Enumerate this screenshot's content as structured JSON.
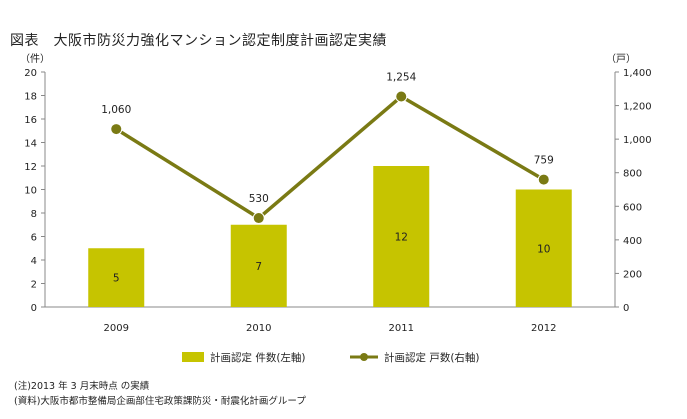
{
  "title": "図表　大阪市防災力強化マンション認定制度計画認定実績",
  "notes": [
    "(注)2013 年 3 月末時点 の実績",
    "(資料)大阪市都市整備局企画部住宅政策課防災・耐震化計画グループ"
  ],
  "colors": {
    "bar": "#c6c400",
    "line": "#7a7a14",
    "marker": "#7a7a14",
    "axis": "#888888"
  },
  "chart_data": {
    "type": "bar+line",
    "categories": [
      "2009",
      "2010",
      "2011",
      "2012"
    ],
    "series": [
      {
        "name": "計画認定 件数(左軸)",
        "type": "bar",
        "axis": "left",
        "values": [
          5,
          7,
          12,
          10
        ],
        "labels": [
          "5",
          "7",
          "12",
          "10"
        ]
      },
      {
        "name": "計画認定 戸数(右軸)",
        "type": "line",
        "axis": "right",
        "values": [
          1060,
          530,
          1254,
          759
        ],
        "labels": [
          "1,060",
          "530",
          "1,254",
          "759"
        ]
      }
    ],
    "left_axis": {
      "unit": "（件）",
      "range": [
        0,
        20
      ],
      "ticks": [
        "0",
        "2",
        "4",
        "6",
        "8",
        "10",
        "12",
        "14",
        "16",
        "18",
        "20"
      ]
    },
    "right_axis": {
      "unit": "（戸）",
      "range": [
        0,
        1400
      ],
      "ticks": [
        "0",
        "200",
        "400",
        "600",
        "800",
        "1,000",
        "1,200",
        "1,400"
      ]
    },
    "legend": [
      "計画認定 件数(左軸)",
      "計画認定 戸数(右軸)"
    ]
  }
}
